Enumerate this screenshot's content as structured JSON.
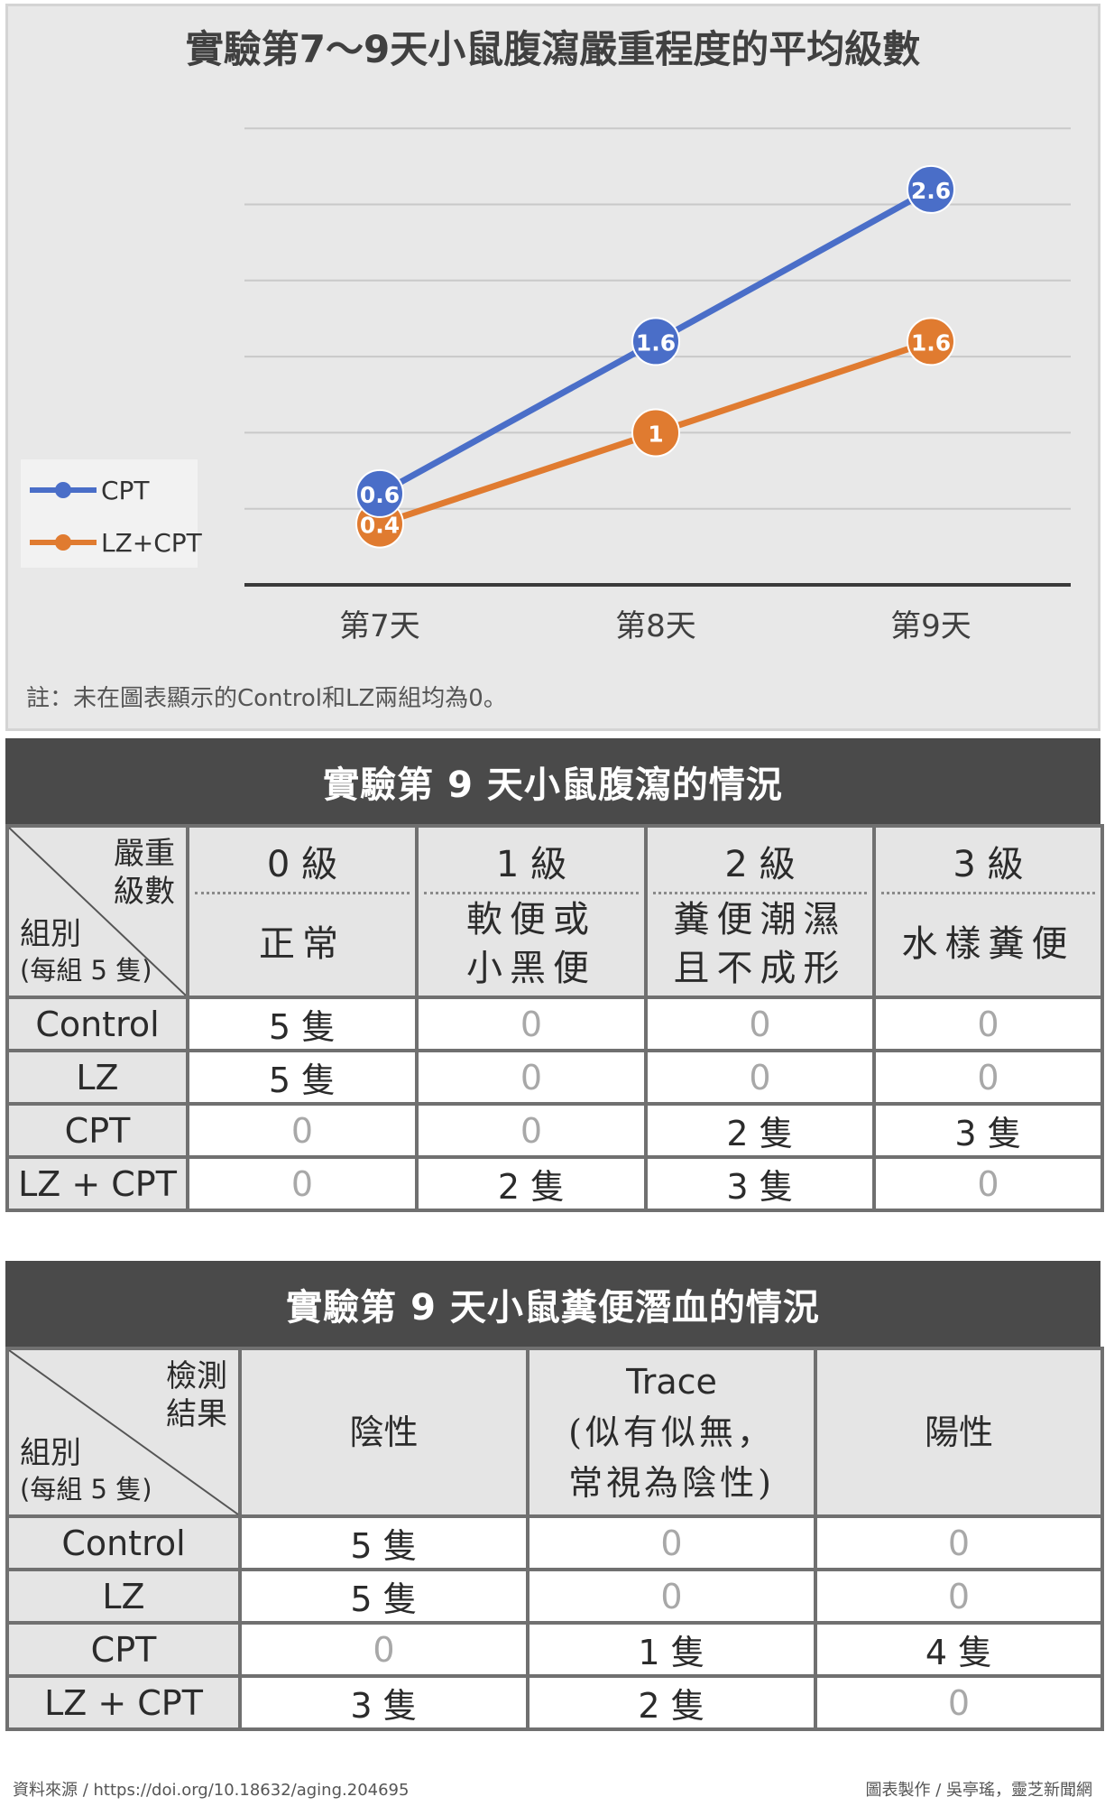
{
  "chart_data": {
    "type": "line",
    "title": "實驗第7～9天小鼠腹瀉嚴重程度的平均級數",
    "categories": [
      "第7天",
      "第8天",
      "第9天"
    ],
    "series": [
      {
        "name": "CPT",
        "values": [
          0.6,
          1.6,
          2.6
        ],
        "color": "#4a6ec8"
      },
      {
        "name": "LZ+CPT",
        "values": [
          0.4,
          1,
          1.6
        ],
        "color": "#e07b30"
      }
    ],
    "ylim": [
      -0.6,
      3.0
    ],
    "grid": true,
    "legend": "left",
    "note": "註：未在圖表顯示的Control和LZ兩組均為0。"
  },
  "table1": {
    "title": "實驗第 9 天小鼠腹瀉的情況",
    "corner_top": [
      "嚴重",
      "級數"
    ],
    "corner_bottom": "組別",
    "corner_bottom_sub": "(每組 5 隻)",
    "grades": [
      {
        "level": "0 級",
        "desc": [
          "正常"
        ]
      },
      {
        "level": "1 級",
        "desc": [
          "軟便或",
          "小黑便"
        ]
      },
      {
        "level": "2 級",
        "desc": [
          "糞便潮濕",
          "且不成形"
        ]
      },
      {
        "level": "3 級",
        "desc": [
          "水樣糞便"
        ]
      }
    ],
    "rows": [
      {
        "group": "Control",
        "cells": [
          "5 隻",
          "0",
          "0",
          "0"
        ]
      },
      {
        "group": "LZ",
        "cells": [
          "5 隻",
          "0",
          "0",
          "0"
        ]
      },
      {
        "group": "CPT",
        "cells": [
          "0",
          "0",
          "2 隻",
          "3 隻"
        ]
      },
      {
        "group": "LZ + CPT",
        "cells": [
          "0",
          "2 隻",
          "3 隻",
          "0"
        ]
      }
    ]
  },
  "table2": {
    "title": "實驗第 9 天小鼠糞便潛血的情況",
    "corner_top": [
      "檢測",
      "結果"
    ],
    "corner_bottom": "組別",
    "corner_bottom_sub": "(每組 5 隻)",
    "columns": [
      {
        "lines": [
          "陰性"
        ]
      },
      {
        "lines": [
          "Trace",
          "(似有似無，",
          "常視為陰性)"
        ]
      },
      {
        "lines": [
          "陽性"
        ]
      }
    ],
    "rows": [
      {
        "group": "Control",
        "cells": [
          "5 隻",
          "0",
          "0"
        ]
      },
      {
        "group": "LZ",
        "cells": [
          "5 隻",
          "0",
          "0"
        ]
      },
      {
        "group": "CPT",
        "cells": [
          "0",
          "1 隻",
          "4 隻"
        ]
      },
      {
        "group": "LZ + CPT",
        "cells": [
          "3 隻",
          "2 隻",
          "0"
        ]
      }
    ]
  },
  "footer": {
    "source": "資料來源 / https://doi.org/10.18632/aging.204695",
    "credit": "圖表製作 / 吳亭瑤，靈芝新聞網"
  }
}
